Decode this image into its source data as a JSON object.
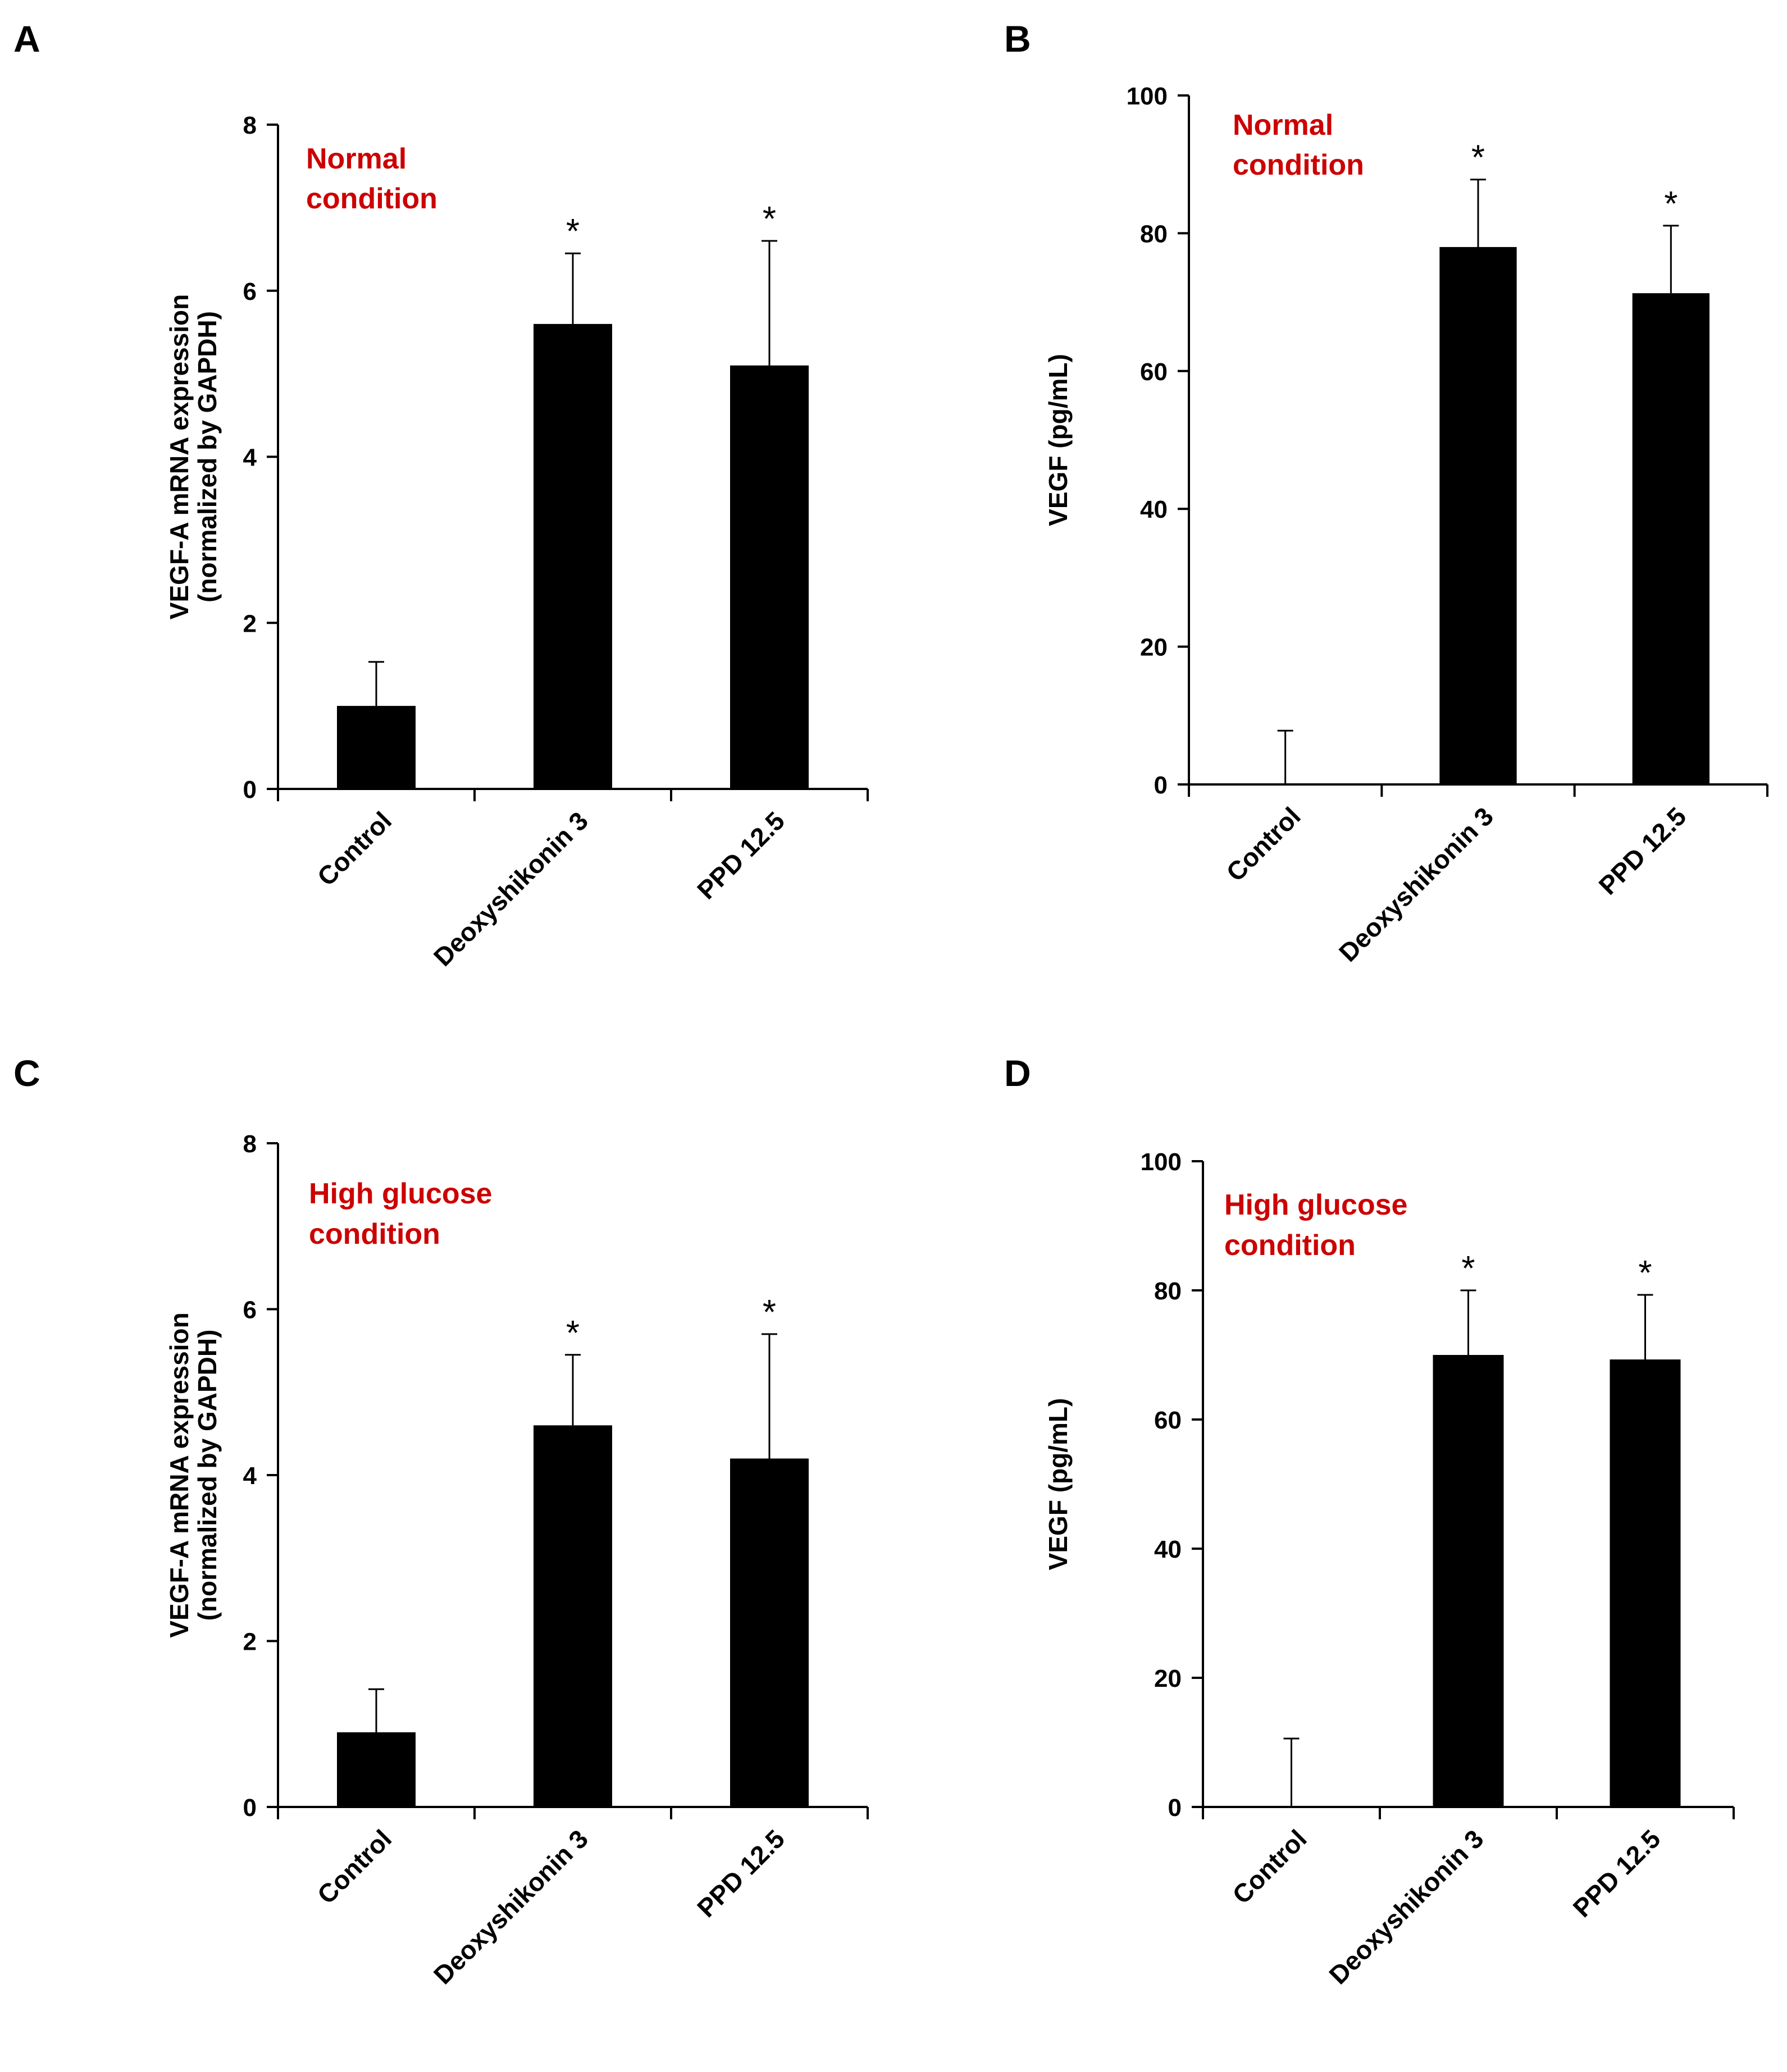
{
  "colors": {
    "bar": "#000000",
    "condition_text": "#cc0000",
    "axis": "#000000"
  },
  "chart_data": [
    {
      "panel": "A",
      "type": "bar",
      "condition_label": [
        "Normal",
        "condition"
      ],
      "ylabel": [
        "VEGF-A mRNA expression",
        "(normalized by GAPDH)"
      ],
      "categories": [
        "Control",
        "Deoxyshikonin 3",
        "PPD 12.5"
      ],
      "values": [
        1.0,
        5.6,
        5.1
      ],
      "errors": [
        0.53,
        0.85,
        1.5
      ],
      "significance": [
        "",
        "*",
        "*"
      ],
      "ylim": [
        0,
        8
      ],
      "yticks": [
        0,
        2,
        4,
        6,
        8
      ]
    },
    {
      "panel": "B",
      "type": "bar",
      "condition_label": [
        "Normal",
        "condition"
      ],
      "ylabel": [
        "VEGF (pg/mL)"
      ],
      "categories": [
        "Control",
        "Deoxyshikonin 3",
        "PPD 12.5"
      ],
      "values": [
        0,
        78,
        71.3
      ],
      "errors": [
        7.8,
        9.8,
        9.8
      ],
      "significance": [
        "",
        "*",
        "*"
      ],
      "ylim": [
        0,
        100
      ],
      "yticks": [
        0,
        20,
        40,
        60,
        80,
        100
      ]
    },
    {
      "panel": "C",
      "type": "bar",
      "condition_label": [
        "High glucose",
        "condition"
      ],
      "ylabel": [
        "VEGF-A mRNA expression",
        "(normalized by GAPDH)"
      ],
      "categories": [
        "Control",
        "Deoxyshikonin 3",
        "PPD 12.5"
      ],
      "values": [
        0.9,
        4.6,
        4.2
      ],
      "errors": [
        0.52,
        0.85,
        1.5
      ],
      "significance": [
        "",
        "*",
        "*"
      ],
      "ylim": [
        0,
        8
      ],
      "yticks": [
        0,
        2,
        4,
        6,
        8
      ]
    },
    {
      "panel": "D",
      "type": "bar",
      "condition_label": [
        "High glucose",
        "condition"
      ],
      "ylabel": [
        "VEGF (pg/mL)"
      ],
      "categories": [
        "Control",
        "Deoxyshikonin 3",
        "PPD 12.5"
      ],
      "values": [
        0,
        70,
        69.3
      ],
      "errors": [
        10.6,
        10,
        10
      ],
      "significance": [
        "",
        "*",
        "*"
      ],
      "ylim": [
        0,
        100
      ],
      "yticks": [
        0,
        20,
        40,
        60,
        80,
        100
      ]
    }
  ]
}
